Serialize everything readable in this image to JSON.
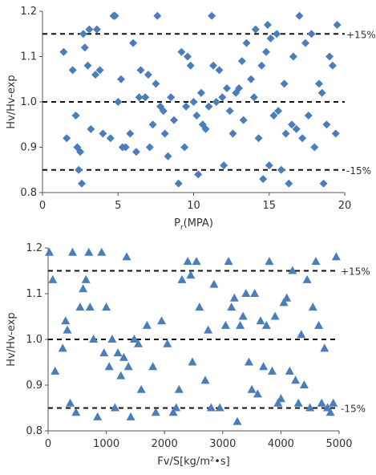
{
  "chart_data": [
    {
      "type": "scatter",
      "title": "",
      "xlabel_main": "P",
      "xlabel_sub": "r",
      "xlabel_rest": "(MPA)",
      "ylabel": "Hv/Hv-exp",
      "xlim": [
        0,
        20
      ],
      "ylim": [
        0.8,
        1.2
      ],
      "xticks": [
        "0",
        "5",
        "10",
        "15",
        "20"
      ],
      "yticks": [
        "0.8",
        "0.9",
        "1.0",
        "1.1",
        "1.2"
      ],
      "reference_lines": [
        1.15,
        1.0,
        0.85
      ],
      "band_labels": {
        "upper": "+15%",
        "lower": "-15%"
      },
      "marker": "diamond",
      "color": "#4a7ebb",
      "x": [
        1.4,
        1.6,
        2.0,
        2.2,
        2.3,
        2.4,
        2.5,
        2.6,
        2.7,
        2.8,
        3.0,
        3.1,
        3.2,
        3.5,
        3.6,
        3.8,
        4.0,
        4.5,
        4.7,
        4.8,
        5.0,
        5.2,
        5.3,
        5.5,
        5.8,
        6.0,
        6.2,
        6.4,
        6.5,
        6.8,
        7.0,
        7.1,
        7.3,
        7.5,
        7.6,
        7.8,
        8.0,
        8.1,
        8.3,
        8.5,
        8.7,
        9.0,
        9.2,
        9.4,
        9.5,
        9.6,
        9.8,
        10.0,
        10.2,
        10.3,
        10.5,
        10.6,
        10.8,
        11.0,
        11.2,
        11.3,
        11.5,
        11.7,
        11.9,
        12.0,
        12.2,
        12.4,
        12.6,
        12.8,
        13.0,
        13.2,
        13.3,
        13.5,
        13.8,
        14.0,
        14.1,
        14.3,
        14.5,
        14.6,
        14.8,
        14.9,
        15.0,
        15.1,
        15.3,
        15.5,
        15.6,
        15.8,
        16.0,
        16.1,
        16.3,
        16.5,
        16.6,
        16.8,
        17.0,
        17.2,
        17.4,
        17.6,
        17.8,
        18.0,
        18.3,
        18.5,
        18.6,
        18.8,
        19.0,
        19.2,
        19.4,
        19.5
      ],
      "y": [
        1.11,
        0.92,
        1.07,
        0.97,
        0.9,
        0.85,
        0.89,
        0.82,
        1.15,
        1.12,
        1.08,
        1.16,
        0.94,
        1.06,
        1.16,
        1.07,
        0.93,
        0.92,
        1.19,
        1.19,
        1.0,
        1.05,
        0.9,
        0.9,
        0.93,
        1.13,
        0.89,
        1.01,
        1.07,
        1.01,
        1.06,
        0.9,
        0.95,
        1.04,
        1.19,
        0.99,
        0.98,
        0.93,
        0.88,
        1.01,
        0.96,
        0.82,
        1.11,
        0.9,
        0.99,
        1.1,
        1.08,
        1.0,
        0.97,
        0.84,
        1.02,
        0.95,
        0.94,
        0.99,
        1.19,
        1.08,
        1.0,
        1.07,
        1.01,
        0.86,
        1.03,
        0.98,
        0.93,
        1.02,
        1.03,
        1.09,
        0.96,
        1.13,
        1.05,
        1.01,
        1.16,
        0.92,
        1.08,
        0.83,
        1.11,
        1.17,
        0.86,
        1.14,
        0.97,
        1.15,
        0.98,
        0.85,
        1.04,
        0.93,
        0.82,
        0.95,
        1.1,
        0.94,
        1.19,
        0.92,
        1.13,
        0.97,
        1.15,
        0.9,
        1.04,
        1.02,
        0.82,
        0.95,
        1.1,
        1.08,
        0.93,
        1.17
      ]
    },
    {
      "type": "scatter",
      "title": "",
      "xlabel_main": "Fv/S[kg/m²•s]",
      "ylabel": "Hv/Hv-exp",
      "xlim": [
        0,
        5000
      ],
      "ylim": [
        0.8,
        1.2
      ],
      "xticks": [
        "0",
        "1000",
        "2000",
        "3000",
        "4000",
        "5000"
      ],
      "yticks": [
        "0.8",
        "0.9",
        "1.0",
        "1.1",
        "1.2"
      ],
      "reference_lines": [
        1.15,
        1.0,
        0.85
      ],
      "band_labels": {
        "upper": "+15%",
        "lower": "-15%"
      },
      "marker": "triangle",
      "color": "#4a7ebb",
      "x": [
        20,
        80,
        120,
        250,
        300,
        330,
        380,
        420,
        480,
        550,
        600,
        650,
        700,
        720,
        780,
        850,
        920,
        960,
        1000,
        1050,
        1100,
        1150,
        1200,
        1250,
        1300,
        1350,
        1380,
        1420,
        1480,
        1550,
        1600,
        1700,
        1800,
        1850,
        1950,
        2050,
        2150,
        2200,
        2250,
        2300,
        2400,
        2450,
        2480,
        2550,
        2600,
        2700,
        2750,
        2800,
        2850,
        2950,
        3050,
        3100,
        3150,
        3200,
        3250,
        3300,
        3350,
        3400,
        3450,
        3500,
        3550,
        3600,
        3650,
        3700,
        3750,
        3800,
        3850,
        3900,
        3950,
        4000,
        4050,
        4100,
        4150,
        4200,
        4250,
        4300,
        4350,
        4400,
        4450,
        4500,
        4550,
        4600,
        4650,
        4700,
        4750,
        4800,
        4850,
        4900,
        4950
      ],
      "y": [
        1.19,
        1.13,
        0.93,
        0.98,
        1.04,
        1.02,
        0.86,
        1.19,
        0.84,
        1.07,
        1.11,
        1.13,
        1.19,
        1.07,
        1.0,
        0.83,
        1.19,
        0.97,
        1.07,
        0.94,
        1.0,
        0.85,
        0.97,
        0.92,
        0.96,
        1.18,
        0.94,
        0.83,
        1.0,
        0.99,
        0.89,
        1.03,
        0.94,
        0.84,
        1.04,
        0.99,
        0.84,
        0.85,
        0.89,
        1.13,
        1.17,
        1.14,
        0.95,
        1.17,
        1.07,
        0.91,
        1.02,
        0.85,
        1.12,
        0.85,
        1.03,
        1.17,
        1.07,
        1.09,
        0.82,
        1.03,
        1.05,
        1.1,
        0.95,
        0.89,
        1.1,
        0.88,
        1.04,
        0.94,
        1.03,
        1.17,
        0.93,
        1.05,
        0.86,
        0.87,
        1.08,
        1.09,
        0.93,
        1.15,
        0.91,
        0.86,
        1.01,
        0.9,
        1.13,
        0.85,
        1.07,
        1.17,
        1.03,
        0.86,
        0.98,
        0.85,
        0.84,
        0.86,
        1.18
      ]
    }
  ]
}
